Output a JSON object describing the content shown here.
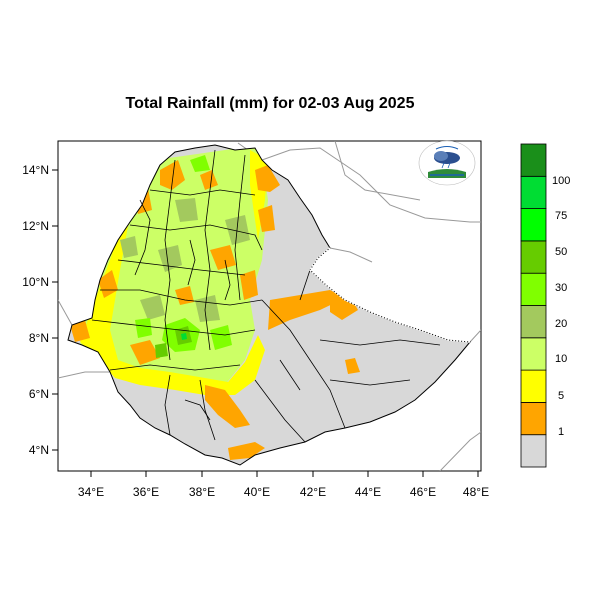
{
  "title": "Total Rainfall (mm) for 02-03 Aug 2025",
  "axes": {
    "x_ticks": [
      "34°E",
      "36°E",
      "38°E",
      "40°E",
      "42°E",
      "44°E",
      "46°E",
      "48°E"
    ],
    "y_ticks": [
      "14°N",
      "12°N",
      "10°N",
      "8°N",
      "6°N",
      "4°N"
    ]
  },
  "legend": {
    "labels": [
      "1",
      "5",
      "10",
      "20",
      "30",
      "50",
      "75",
      "100"
    ],
    "colors": [
      "#d8d8d8",
      "#ffa500",
      "#ffff00",
      "#ccff66",
      "#a3c95e",
      "#80ff00",
      "#66cc00",
      "#00ff00",
      "#00dd33",
      "#1a8f1a"
    ]
  },
  "logo": {
    "name": "ethiopian-meteorology-logo"
  },
  "colors": {
    "land_gray": "#d8d8d8",
    "border": "#000000",
    "neighbor_lines": "#999999"
  }
}
